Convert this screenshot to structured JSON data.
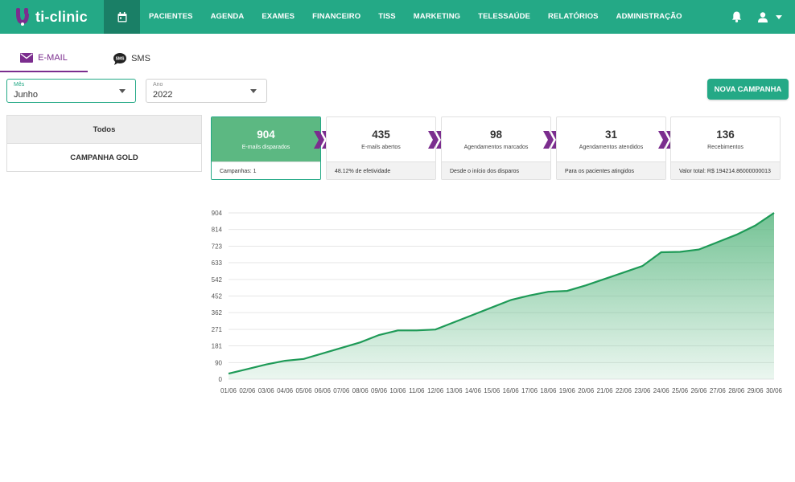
{
  "app": {
    "name": "ti-clinic"
  },
  "nav": {
    "items": [
      "PACIENTES",
      "AGENDA",
      "EXAMES",
      "FINANCEIRO",
      "TISS",
      "MARKETING",
      "TELESSAÚDE",
      "RELATÓRIOS",
      "ADMINISTRAÇÃO"
    ]
  },
  "tabs": {
    "email": "E-MAIL",
    "sms": "SMS"
  },
  "filters": {
    "month_label": "Mês",
    "month_value": "Junho",
    "year_label": "Ano",
    "year_value": "2022"
  },
  "new_campaign_label": "NOVA CAMPANHA",
  "campaigns": {
    "all_label": "Todos",
    "items": [
      "CAMPANHA GOLD"
    ]
  },
  "cards": [
    {
      "value": "904",
      "label": "E-mails disparados",
      "footer": "Campanhas: 1"
    },
    {
      "value": "435",
      "label": "E-mails abertos",
      "footer": "48.12% de efetividade"
    },
    {
      "value": "98",
      "label": "Agendamentos marcados",
      "footer": "Desde o início dos disparos"
    },
    {
      "value": "31",
      "label": "Agendamentos atendidos",
      "footer": "Para os pacientes atingidos"
    },
    {
      "value": "136",
      "label": "Recebimentos",
      "footer": "Valor total: R$ 194214.86000000013"
    }
  ],
  "colors": {
    "primary": "#24a986",
    "primary_dark": "#1a7f66",
    "accent": "#7b2d8e",
    "line": "#1e9a57"
  },
  "chart_data": {
    "type": "area",
    "x": [
      "01/06",
      "02/06",
      "03/06",
      "04/06",
      "05/06",
      "06/06",
      "07/06",
      "08/06",
      "09/06",
      "10/06",
      "11/06",
      "12/06",
      "13/06",
      "14/06",
      "15/06",
      "16/06",
      "17/06",
      "18/06",
      "19/06",
      "20/06",
      "21/06",
      "22/06",
      "23/06",
      "24/06",
      "25/06",
      "26/06",
      "27/06",
      "28/06",
      "29/06",
      "30/06"
    ],
    "yticks": [
      "0",
      "90",
      "181",
      "271",
      "362",
      "452",
      "542",
      "633",
      "723",
      "814",
      "904"
    ],
    "ylim": [
      0,
      904
    ],
    "grid": true,
    "series": [
      {
        "values": [
          30,
          55,
          80,
          100,
          110,
          140,
          170,
          200,
          240,
          265,
          265,
          270,
          310,
          350,
          390,
          430,
          455,
          475,
          480,
          510,
          545,
          580,
          615,
          690,
          692,
          705,
          745,
          785,
          835,
          904
        ]
      }
    ]
  }
}
